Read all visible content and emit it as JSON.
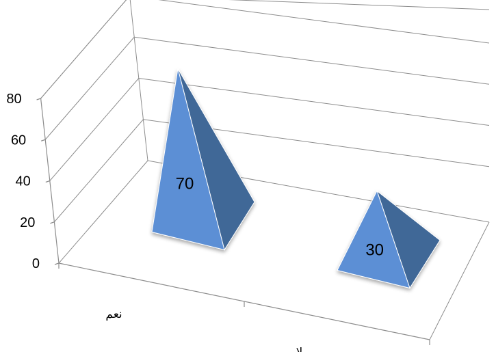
{
  "chart_data": {
    "type": "bar",
    "bar_shape": "pyramid",
    "three_d": true,
    "categories": [
      "نعم",
      "لا"
    ],
    "values": [
      70,
      30
    ],
    "data_labels": [
      "70",
      "30"
    ],
    "y_ticks": [
      "0",
      "20",
      "40",
      "60",
      "80"
    ],
    "ylim": [
      0,
      80
    ],
    "grid": true,
    "legend": "none",
    "colors": {
      "front_face": "#5b8fd5",
      "side_face": "#3f6797",
      "dark_face": "#22395a",
      "axis": "#8c8c8c"
    }
  }
}
